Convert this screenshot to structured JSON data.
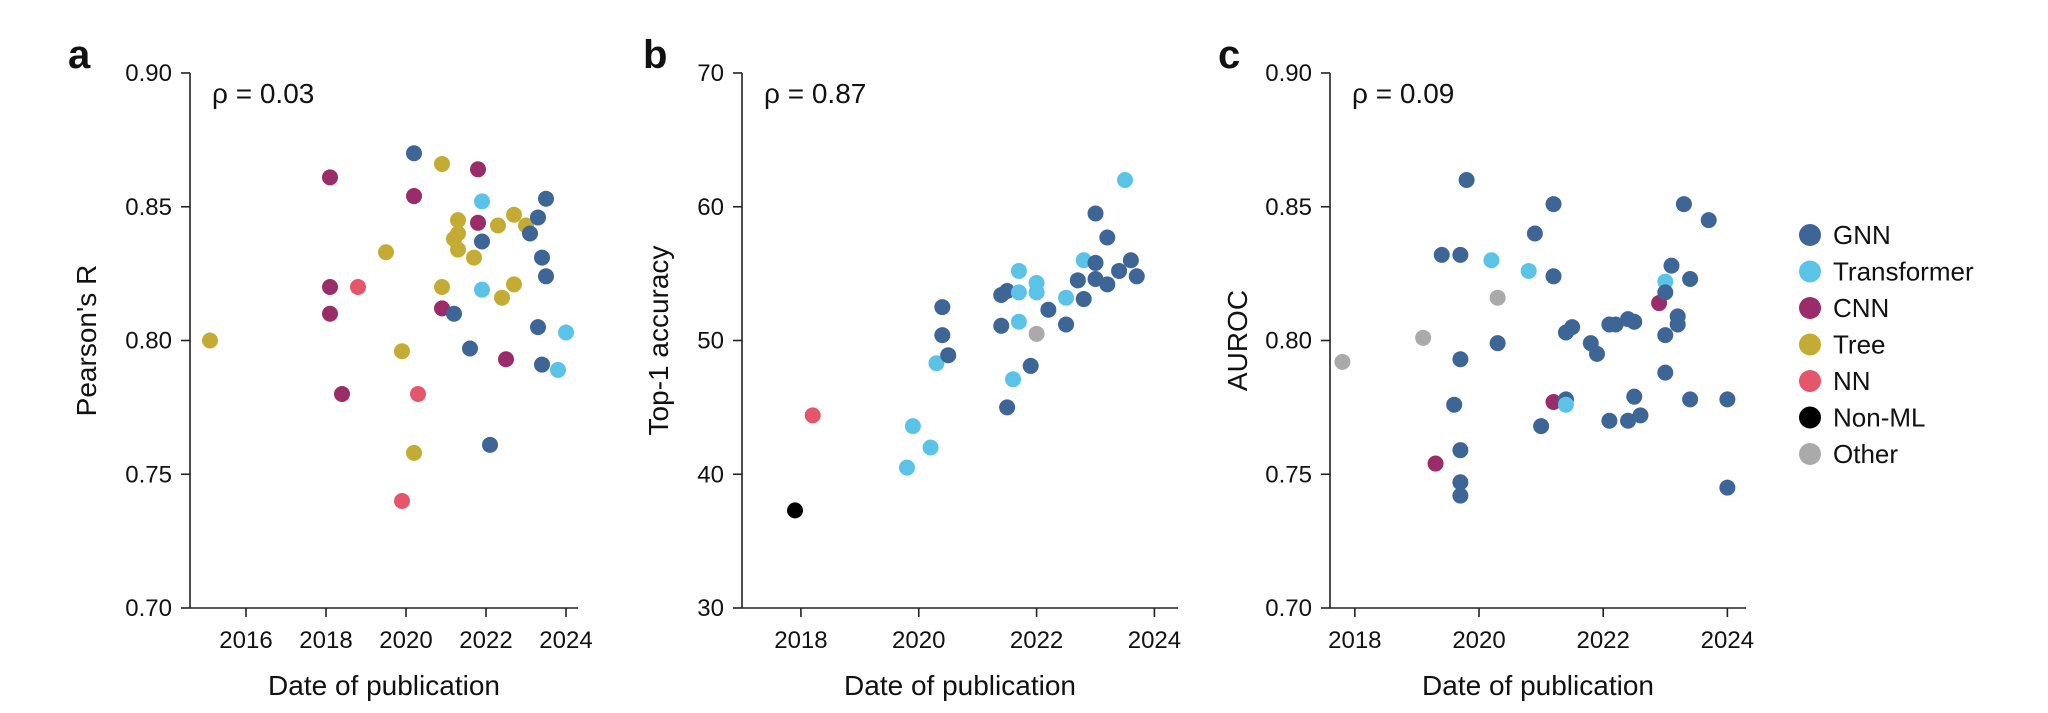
{
  "colors": {
    "GNN": "#3d6596",
    "Transformer": "#5cc3e8",
    "CNN": "#9a2c69",
    "Tree": "#c4ac34",
    "NN": "#e5566a",
    "Non-ML": "#000000",
    "Other": "#aaaaaa"
  },
  "legend": {
    "placement": "right",
    "items": [
      "GNN",
      "Transformer",
      "CNN",
      "Tree",
      "NN",
      "Non-ML",
      "Other"
    ]
  },
  "chart_data": [
    {
      "panel": "a",
      "type": "scatter",
      "annotation": "ρ = 0.03",
      "xlabel": "Date of publication",
      "ylabel": "Pearson's R",
      "xlim": [
        2014.6,
        2024.3
      ],
      "ylim": [
        0.7,
        0.9
      ],
      "xticks": [
        2016,
        2018,
        2020,
        2022,
        2024
      ],
      "yticks": [
        0.7,
        0.75,
        0.8,
        0.85,
        0.9
      ],
      "ytick_labels": [
        "0.70",
        "0.75",
        "0.80",
        "0.85",
        "0.90"
      ],
      "points": [
        {
          "x": 2015.1,
          "y": 0.8,
          "cat": "Tree"
        },
        {
          "x": 2018.1,
          "y": 0.861,
          "cat": "CNN"
        },
        {
          "x": 2018.1,
          "y": 0.82,
          "cat": "CNN"
        },
        {
          "x": 2018.1,
          "y": 0.81,
          "cat": "CNN"
        },
        {
          "x": 2018.4,
          "y": 0.78,
          "cat": "CNN"
        },
        {
          "x": 2018.8,
          "y": 0.82,
          "cat": "NN"
        },
        {
          "x": 2019.5,
          "y": 0.833,
          "cat": "Tree"
        },
        {
          "x": 2019.9,
          "y": 0.796,
          "cat": "Tree"
        },
        {
          "x": 2019.9,
          "y": 0.74,
          "cat": "NN"
        },
        {
          "x": 2020.2,
          "y": 0.87,
          "cat": "GNN"
        },
        {
          "x": 2020.2,
          "y": 0.854,
          "cat": "CNN"
        },
        {
          "x": 2020.2,
          "y": 0.758,
          "cat": "Tree"
        },
        {
          "x": 2020.3,
          "y": 0.78,
          "cat": "NN"
        },
        {
          "x": 2020.9,
          "y": 0.866,
          "cat": "Tree"
        },
        {
          "x": 2020.9,
          "y": 0.82,
          "cat": "Tree"
        },
        {
          "x": 2020.9,
          "y": 0.812,
          "cat": "CNN"
        },
        {
          "x": 2021.2,
          "y": 0.838,
          "cat": "Tree"
        },
        {
          "x": 2021.2,
          "y": 0.81,
          "cat": "GNN"
        },
        {
          "x": 2021.3,
          "y": 0.845,
          "cat": "Tree"
        },
        {
          "x": 2021.3,
          "y": 0.84,
          "cat": "Tree"
        },
        {
          "x": 2021.3,
          "y": 0.834,
          "cat": "Tree"
        },
        {
          "x": 2021.6,
          "y": 0.797,
          "cat": "GNN"
        },
        {
          "x": 2021.7,
          "y": 0.831,
          "cat": "Tree"
        },
        {
          "x": 2021.8,
          "y": 0.864,
          "cat": "CNN"
        },
        {
          "x": 2021.8,
          "y": 0.844,
          "cat": "CNN"
        },
        {
          "x": 2021.9,
          "y": 0.852,
          "cat": "Transformer"
        },
        {
          "x": 2021.9,
          "y": 0.837,
          "cat": "GNN"
        },
        {
          "x": 2021.9,
          "y": 0.819,
          "cat": "Transformer"
        },
        {
          "x": 2022.1,
          "y": 0.761,
          "cat": "GNN"
        },
        {
          "x": 2022.3,
          "y": 0.843,
          "cat": "Tree"
        },
        {
          "x": 2022.4,
          "y": 0.816,
          "cat": "Tree"
        },
        {
          "x": 2022.5,
          "y": 0.793,
          "cat": "CNN"
        },
        {
          "x": 2022.7,
          "y": 0.847,
          "cat": "Tree"
        },
        {
          "x": 2022.7,
          "y": 0.821,
          "cat": "Tree"
        },
        {
          "x": 2023.0,
          "y": 0.843,
          "cat": "Tree"
        },
        {
          "x": 2023.1,
          "y": 0.84,
          "cat": "GNN"
        },
        {
          "x": 2023.3,
          "y": 0.846,
          "cat": "GNN"
        },
        {
          "x": 2023.3,
          "y": 0.805,
          "cat": "GNN"
        },
        {
          "x": 2023.4,
          "y": 0.791,
          "cat": "GNN"
        },
        {
          "x": 2023.4,
          "y": 0.831,
          "cat": "GNN"
        },
        {
          "x": 2023.5,
          "y": 0.853,
          "cat": "GNN"
        },
        {
          "x": 2023.5,
          "y": 0.824,
          "cat": "GNN"
        },
        {
          "x": 2023.8,
          "y": 0.789,
          "cat": "Transformer"
        },
        {
          "x": 2024.0,
          "y": 0.803,
          "cat": "Transformer"
        }
      ]
    },
    {
      "panel": "b",
      "type": "scatter",
      "annotation": "ρ = 0.87",
      "xlabel": "Date of publication",
      "ylabel": "Top-1 accuracy",
      "xlim": [
        2017.0,
        2024.4
      ],
      "ylim": [
        30,
        70
      ],
      "xticks": [
        2018,
        2020,
        2022,
        2024
      ],
      "yticks": [
        30,
        40,
        50,
        60,
        70
      ],
      "ytick_labels": [
        "30",
        "40",
        "50",
        "60",
        "70"
      ],
      "points": [
        {
          "x": 2017.9,
          "y": 37.3,
          "cat": "Non-ML"
        },
        {
          "x": 2018.2,
          "y": 44.4,
          "cat": "NN"
        },
        {
          "x": 2019.8,
          "y": 40.5,
          "cat": "Transformer"
        },
        {
          "x": 2019.9,
          "y": 43.6,
          "cat": "Transformer"
        },
        {
          "x": 2020.2,
          "y": 42.0,
          "cat": "Transformer"
        },
        {
          "x": 2020.3,
          "y": 48.3,
          "cat": "Transformer"
        },
        {
          "x": 2020.4,
          "y": 52.5,
          "cat": "GNN"
        },
        {
          "x": 2020.4,
          "y": 50.4,
          "cat": "GNN"
        },
        {
          "x": 2020.5,
          "y": 48.9,
          "cat": "GNN"
        },
        {
          "x": 2021.4,
          "y": 53.4,
          "cat": "GNN"
        },
        {
          "x": 2021.4,
          "y": 51.1,
          "cat": "GNN"
        },
        {
          "x": 2021.5,
          "y": 53.7,
          "cat": "GNN"
        },
        {
          "x": 2021.5,
          "y": 45.0,
          "cat": "GNN"
        },
        {
          "x": 2021.6,
          "y": 47.1,
          "cat": "Transformer"
        },
        {
          "x": 2021.7,
          "y": 55.2,
          "cat": "Transformer"
        },
        {
          "x": 2021.7,
          "y": 53.6,
          "cat": "Transformer"
        },
        {
          "x": 2021.7,
          "y": 51.4,
          "cat": "Transformer"
        },
        {
          "x": 2021.9,
          "y": 48.1,
          "cat": "GNN"
        },
        {
          "x": 2022.0,
          "y": 54.3,
          "cat": "Transformer"
        },
        {
          "x": 2022.0,
          "y": 53.6,
          "cat": "Transformer"
        },
        {
          "x": 2022.0,
          "y": 50.5,
          "cat": "Other"
        },
        {
          "x": 2022.2,
          "y": 52.3,
          "cat": "GNN"
        },
        {
          "x": 2022.5,
          "y": 53.2,
          "cat": "Transformer"
        },
        {
          "x": 2022.5,
          "y": 51.2,
          "cat": "GNN"
        },
        {
          "x": 2022.7,
          "y": 54.5,
          "cat": "GNN"
        },
        {
          "x": 2022.8,
          "y": 53.1,
          "cat": "GNN"
        },
        {
          "x": 2022.8,
          "y": 56.0,
          "cat": "Transformer"
        },
        {
          "x": 2023.0,
          "y": 59.5,
          "cat": "GNN"
        },
        {
          "x": 2023.0,
          "y": 55.8,
          "cat": "GNN"
        },
        {
          "x": 2023.0,
          "y": 54.6,
          "cat": "GNN"
        },
        {
          "x": 2023.2,
          "y": 57.7,
          "cat": "GNN"
        },
        {
          "x": 2023.2,
          "y": 54.2,
          "cat": "GNN"
        },
        {
          "x": 2023.4,
          "y": 55.2,
          "cat": "GNN"
        },
        {
          "x": 2023.5,
          "y": 62.0,
          "cat": "Transformer"
        },
        {
          "x": 2023.6,
          "y": 56.0,
          "cat": "GNN"
        },
        {
          "x": 2023.7,
          "y": 54.8,
          "cat": "GNN"
        }
      ]
    },
    {
      "panel": "c",
      "type": "scatter",
      "annotation": "ρ = 0.09",
      "xlabel": "Date of publication",
      "ylabel": "AUROC",
      "xlim": [
        2017.6,
        2024.3
      ],
      "ylim": [
        0.7,
        0.9
      ],
      "xticks": [
        2018,
        2020,
        2022,
        2024
      ],
      "yticks": [
        0.7,
        0.75,
        0.8,
        0.85,
        0.9
      ],
      "ytick_labels": [
        "0.70",
        "0.75",
        "0.80",
        "0.85",
        "0.90"
      ],
      "points": [
        {
          "x": 2017.8,
          "y": 0.792,
          "cat": "Other"
        },
        {
          "x": 2019.1,
          "y": 0.801,
          "cat": "Other"
        },
        {
          "x": 2019.3,
          "y": 0.754,
          "cat": "CNN"
        },
        {
          "x": 2019.4,
          "y": 0.832,
          "cat": "GNN"
        },
        {
          "x": 2019.6,
          "y": 0.776,
          "cat": "GNN"
        },
        {
          "x": 2019.7,
          "y": 0.832,
          "cat": "GNN"
        },
        {
          "x": 2019.7,
          "y": 0.793,
          "cat": "GNN"
        },
        {
          "x": 2019.7,
          "y": 0.759,
          "cat": "GNN"
        },
        {
          "x": 2019.7,
          "y": 0.747,
          "cat": "GNN"
        },
        {
          "x": 2019.7,
          "y": 0.742,
          "cat": "GNN"
        },
        {
          "x": 2019.8,
          "y": 0.86,
          "cat": "GNN"
        },
        {
          "x": 2020.2,
          "y": 0.83,
          "cat": "Transformer"
        },
        {
          "x": 2020.3,
          "y": 0.816,
          "cat": "Other"
        },
        {
          "x": 2020.3,
          "y": 0.799,
          "cat": "GNN"
        },
        {
          "x": 2020.8,
          "y": 0.826,
          "cat": "Transformer"
        },
        {
          "x": 2020.9,
          "y": 0.84,
          "cat": "GNN"
        },
        {
          "x": 2021.0,
          "y": 0.768,
          "cat": "GNN"
        },
        {
          "x": 2021.2,
          "y": 0.851,
          "cat": "GNN"
        },
        {
          "x": 2021.2,
          "y": 0.824,
          "cat": "GNN"
        },
        {
          "x": 2021.2,
          "y": 0.777,
          "cat": "CNN"
        },
        {
          "x": 2021.4,
          "y": 0.803,
          "cat": "GNN"
        },
        {
          "x": 2021.4,
          "y": 0.778,
          "cat": "GNN"
        },
        {
          "x": 2021.4,
          "y": 0.776,
          "cat": "Transformer"
        },
        {
          "x": 2021.5,
          "y": 0.805,
          "cat": "GNN"
        },
        {
          "x": 2021.8,
          "y": 0.799,
          "cat": "GNN"
        },
        {
          "x": 2021.9,
          "y": 0.795,
          "cat": "GNN"
        },
        {
          "x": 2022.1,
          "y": 0.806,
          "cat": "GNN"
        },
        {
          "x": 2022.1,
          "y": 0.77,
          "cat": "GNN"
        },
        {
          "x": 2022.2,
          "y": 0.806,
          "cat": "GNN"
        },
        {
          "x": 2022.4,
          "y": 0.808,
          "cat": "GNN"
        },
        {
          "x": 2022.4,
          "y": 0.77,
          "cat": "GNN"
        },
        {
          "x": 2022.5,
          "y": 0.807,
          "cat": "GNN"
        },
        {
          "x": 2022.5,
          "y": 0.779,
          "cat": "GNN"
        },
        {
          "x": 2022.6,
          "y": 0.772,
          "cat": "GNN"
        },
        {
          "x": 2022.9,
          "y": 0.814,
          "cat": "CNN"
        },
        {
          "x": 2023.0,
          "y": 0.822,
          "cat": "Transformer"
        },
        {
          "x": 2023.0,
          "y": 0.818,
          "cat": "GNN"
        },
        {
          "x": 2023.0,
          "y": 0.802,
          "cat": "GNN"
        },
        {
          "x": 2023.0,
          "y": 0.788,
          "cat": "GNN"
        },
        {
          "x": 2023.1,
          "y": 0.828,
          "cat": "GNN"
        },
        {
          "x": 2023.2,
          "y": 0.809,
          "cat": "GNN"
        },
        {
          "x": 2023.2,
          "y": 0.806,
          "cat": "GNN"
        },
        {
          "x": 2023.3,
          "y": 0.851,
          "cat": "GNN"
        },
        {
          "x": 2023.4,
          "y": 0.823,
          "cat": "GNN"
        },
        {
          "x": 2023.4,
          "y": 0.778,
          "cat": "GNN"
        },
        {
          "x": 2023.7,
          "y": 0.845,
          "cat": "GNN"
        },
        {
          "x": 2024.0,
          "y": 0.778,
          "cat": "GNN"
        },
        {
          "x": 2024.0,
          "y": 0.745,
          "cat": "GNN"
        }
      ]
    }
  ]
}
